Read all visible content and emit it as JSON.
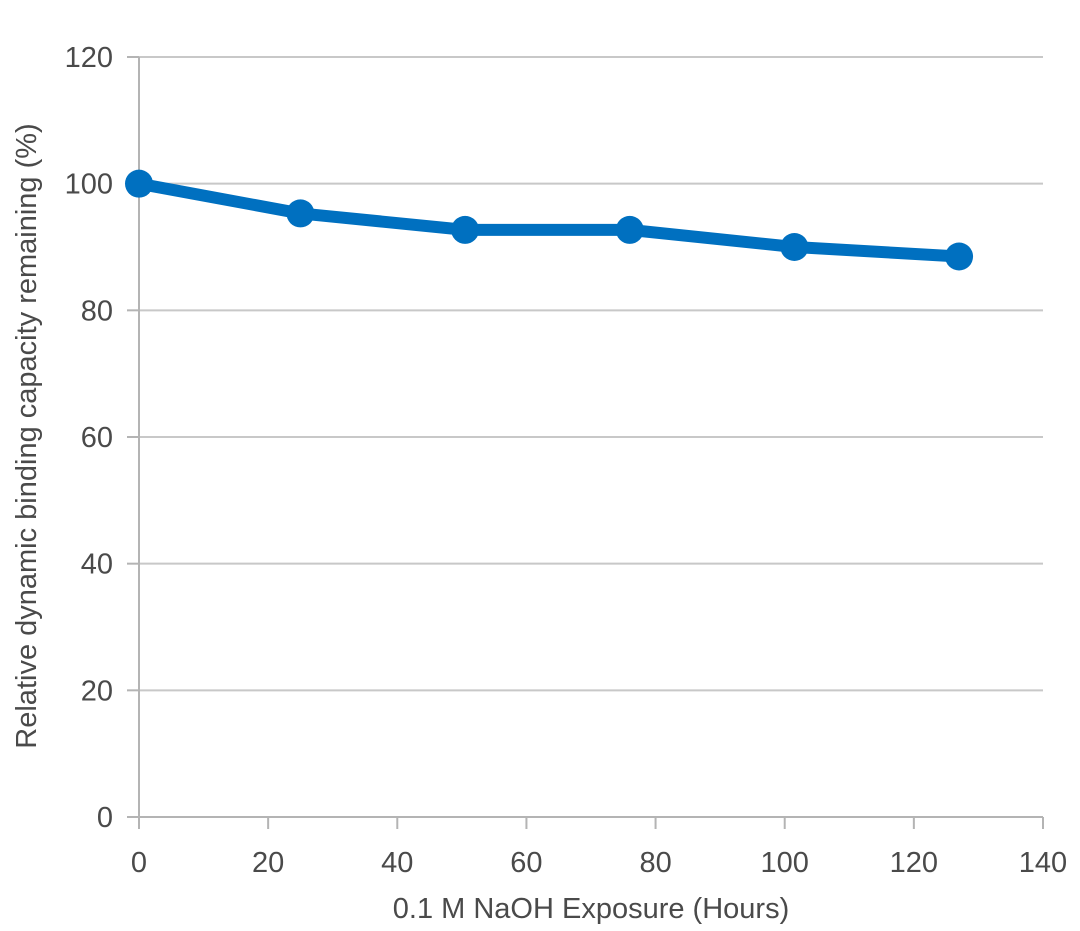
{
  "chart_data": {
    "type": "line",
    "title": "",
    "xlabel": "0.1 M NaOH Exposure (Hours)",
    "ylabel": "Relative dynamic binding capacity remaining (%)",
    "xlim": [
      0,
      140
    ],
    "ylim": [
      0,
      120
    ],
    "x_ticks": [
      0,
      20,
      40,
      60,
      80,
      100,
      120,
      140
    ],
    "y_ticks": [
      0,
      20,
      40,
      60,
      80,
      100,
      120
    ],
    "x_tick_labels": [
      "0",
      "20",
      "40",
      "60",
      "80",
      "100",
      "120",
      "140"
    ],
    "y_tick_labels": [
      "0",
      "20",
      "40",
      "60",
      "80",
      "100",
      "120"
    ],
    "grid": "horizontal",
    "series": [
      {
        "x": [
          0,
          25,
          50.5,
          76,
          101.5,
          127
        ],
        "y": [
          100,
          95.3,
          92.7,
          92.7,
          90.0,
          88.5
        ]
      }
    ],
    "colors": {
      "line": "#0070c0",
      "grid": "#c8c8c8",
      "axis": "#b4b4b4",
      "text": "#4a4a4a"
    }
  }
}
